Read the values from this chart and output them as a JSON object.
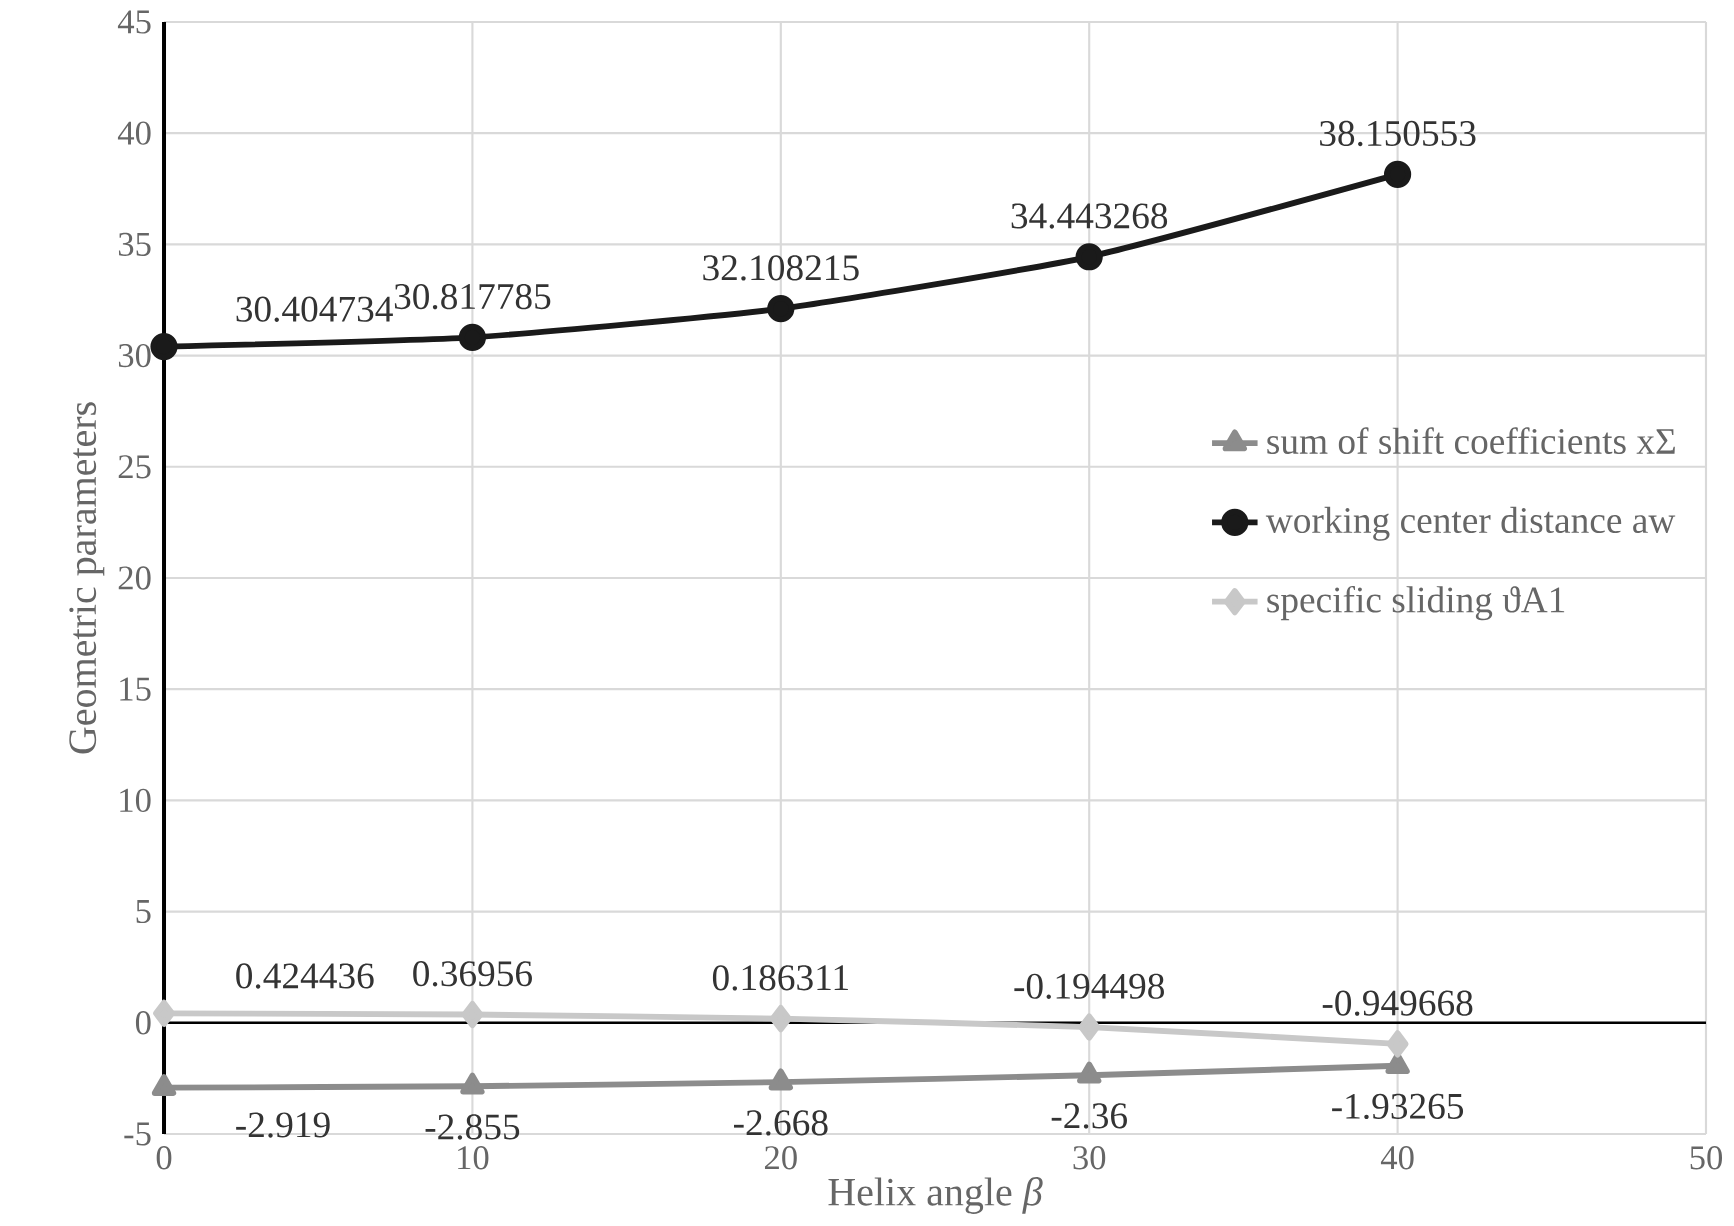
{
  "chart_data": {
    "type": "line",
    "xlabel": "Helix angle *β*",
    "ylabel": "Geometric parameters",
    "x": [
      0,
      10,
      20,
      30,
      40
    ],
    "series": [
      {
        "name": "sum of shift coefficients xΣ",
        "color": "#8c8c8c",
        "marker": "triangle",
        "values": [
          -2.919,
          -2.855,
          -2.668,
          -2.36,
          -1.93265
        ],
        "value_labels": [
          "-2.919",
          "-2.855",
          "-2.668",
          "-2.36",
          "-1.93265"
        ]
      },
      {
        "name": "working center distance aw",
        "color": "#1a1a1a",
        "marker": "circle",
        "values": [
          30.404734,
          30.817785,
          32.108215,
          34.443268,
          38.150553
        ],
        "value_labels": [
          "30.404734",
          "30.817785",
          "32.108215",
          "34.443268",
          "38.150553"
        ]
      },
      {
        "name": "specific sliding ϑA1",
        "color": "#c8c8c8",
        "marker": "diamond",
        "values": [
          0.424436,
          0.36956,
          0.186311,
          -0.194498,
          -0.949668
        ],
        "value_labels": [
          "0.424436",
          "0.36956",
          "0.186311",
          "-0.194498",
          "-0.949668"
        ]
      }
    ],
    "xlim": [
      0,
      50
    ],
    "xticks": [
      0,
      10,
      20,
      30,
      40,
      50
    ],
    "ylim": [
      -5,
      45
    ],
    "yticks": [
      -5,
      0,
      5,
      10,
      15,
      20,
      25,
      30,
      35,
      40,
      45
    ],
    "grid": true,
    "legend": "right"
  }
}
